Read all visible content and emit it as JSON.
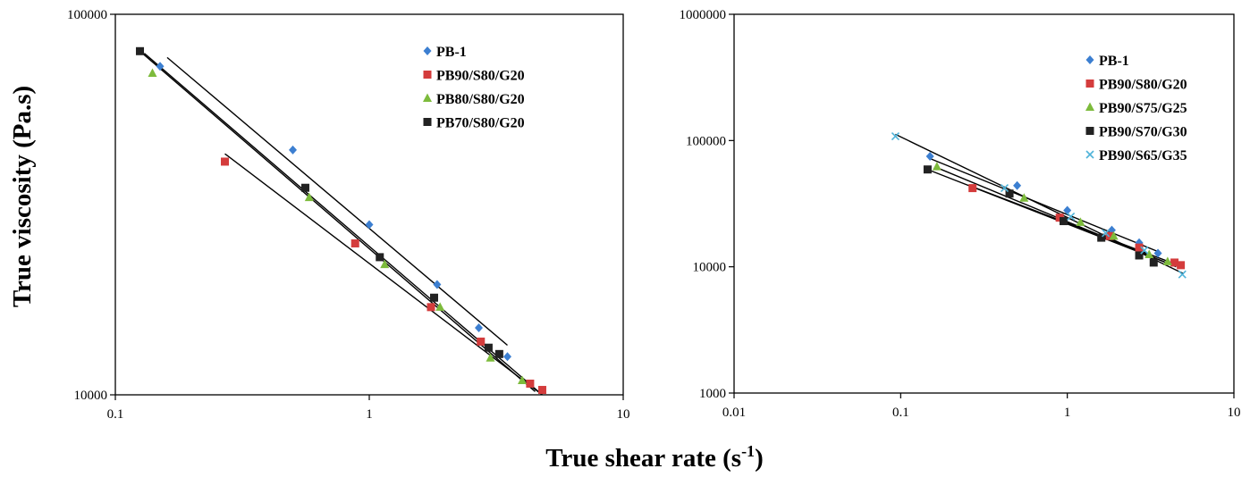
{
  "figure": {
    "xlabel": "True shear rate (s",
    "xlabel_sup": "-1",
    "xlabel_end": ")",
    "ylabel": "True viscosity (Pa.s)"
  },
  "chart_data": [
    {
      "type": "scatter",
      "x_scale": "log",
      "y_scale": "log",
      "xlim": [
        0.1,
        10
      ],
      "ylim": [
        10000,
        100000
      ],
      "x_ticks": [
        "0.1",
        "1",
        "10"
      ],
      "y_ticks": [
        "10000",
        "100000"
      ],
      "legend_position": "top-right",
      "grid": false,
      "series": [
        {
          "name": "PB-1",
          "color": "#3c7fd1",
          "marker": "diamond",
          "x": [
            0.15,
            0.5,
            1.0,
            1.85,
            2.7,
            3.5
          ],
          "y": [
            73000,
            44000,
            28000,
            19500,
            15000,
            12600
          ],
          "fit": {
            "x": [
              0.16,
              3.5
            ],
            "y": [
              77000,
              13500
            ]
          }
        },
        {
          "name": "PB90/S80/G20",
          "color": "#d43c3c",
          "marker": "square",
          "x": [
            0.27,
            0.88,
            1.75,
            2.75,
            4.3,
            4.8
          ],
          "y": [
            41000,
            25000,
            17000,
            13800,
            10700,
            10300
          ],
          "fit": {
            "x": [
              0.27,
              4.8
            ],
            "y": [
              43000,
              10000
            ]
          }
        },
        {
          "name": "PB80/S80/G20",
          "color": "#7dbb3c",
          "marker": "triangle",
          "x": [
            0.14,
            0.58,
            1.15,
            1.9,
            3.0,
            4.0
          ],
          "y": [
            70000,
            33000,
            22000,
            17000,
            12500,
            10900
          ],
          "fit": {
            "x": [
              0.13,
              4.8
            ],
            "y": [
              79000,
              10000
            ]
          }
        },
        {
          "name": "PB70/S80/G20",
          "color": "#222222",
          "marker": "square",
          "x": [
            0.125,
            0.56,
            1.1,
            1.8,
            2.95,
            3.25
          ],
          "y": [
            80000,
            35000,
            23000,
            18000,
            13300,
            12800
          ],
          "fit": {
            "x": [
              0.125,
              4.5
            ],
            "y": [
              80000,
              10200
            ]
          }
        }
      ]
    },
    {
      "type": "scatter",
      "x_scale": "log",
      "y_scale": "log",
      "xlim": [
        0.01,
        10
      ],
      "ylim": [
        1000,
        1000000
      ],
      "x_ticks": [
        "0.01",
        "0.1",
        "1",
        "10"
      ],
      "y_ticks": [
        "1000",
        "10000",
        "100000",
        "1000000"
      ],
      "legend_position": "top-right",
      "grid": false,
      "series": [
        {
          "name": "PB-1",
          "color": "#3c7fd1",
          "marker": "diamond",
          "x": [
            0.15,
            0.5,
            1.0,
            1.85,
            2.7,
            3.5
          ],
          "y": [
            75000,
            44000,
            28000,
            19500,
            15500,
            12800
          ],
          "fit": {
            "x": [
              0.15,
              3.5
            ],
            "y": [
              72000,
              13200
            ]
          }
        },
        {
          "name": "PB90/S80/G20",
          "color": "#d43c3c",
          "marker": "square",
          "x": [
            0.27,
            0.9,
            1.8,
            2.7,
            4.4,
            4.8
          ],
          "y": [
            42000,
            24500,
            17500,
            14200,
            10800,
            10300
          ],
          "fit": {
            "x": [
              0.27,
              4.8
            ],
            "y": [
              43000,
              10100
            ]
          }
        },
        {
          "name": "PB90/S75/G25",
          "color": "#7dbb3c",
          "marker": "triangle",
          "x": [
            0.165,
            0.55,
            1.2,
            1.9,
            3.1,
            4.0
          ],
          "y": [
            62000,
            35000,
            22500,
            17500,
            12500,
            11000
          ],
          "fit": {
            "x": [
              0.16,
              4.5
            ],
            "y": [
              62000,
              10000
            ]
          }
        },
        {
          "name": "PB90/S70/G30",
          "color": "#222222",
          "marker": "square",
          "x": [
            0.145,
            0.45,
            0.95,
            1.6,
            2.7,
            3.3
          ],
          "y": [
            59000,
            38000,
            23000,
            17000,
            12300,
            10800
          ],
          "fit": {
            "x": [
              0.145,
              4.3
            ],
            "y": [
              59000,
              10300
            ]
          }
        },
        {
          "name": "PB90/S65/G35",
          "color": "#4fb3d9",
          "marker": "x",
          "x": [
            0.093,
            0.42,
            1.05,
            1.7,
            2.9,
            4.9
          ],
          "y": [
            108000,
            42000,
            25000,
            18500,
            13500,
            8700
          ],
          "fit": {
            "x": [
              0.093,
              5.0
            ],
            "y": [
              112000,
              8800
            ]
          }
        }
      ]
    }
  ]
}
